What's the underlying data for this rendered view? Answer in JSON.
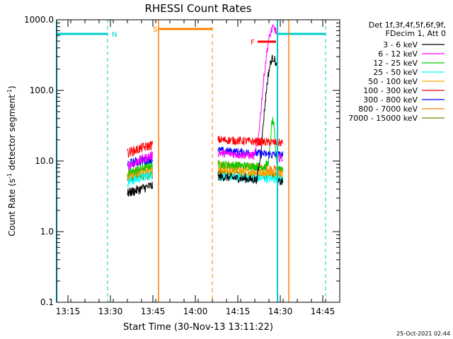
{
  "chart_data": {
    "type": "line",
    "title": "RHESSI Count Rates",
    "xlabel": "Start Time (30-Nov-13 13:11:22)",
    "ylabel_main": "Count Rate (s",
    "ylabel_sup1": "-1",
    "ylabel_mid": " detector segment",
    "ylabel_sup2": "-1",
    "ylabel_end": ")",
    "y_scale": "log",
    "ylim": [
      0.1,
      1000
    ],
    "xlim_min": [
      0,
      71
    ],
    "x_ticks": [
      {
        "t": 4,
        "label": "13:15"
      },
      {
        "t": 19,
        "label": "13:30"
      },
      {
        "t": 34,
        "label": "13:45"
      },
      {
        "t": 49,
        "label": "14:00"
      },
      {
        "t": 64,
        "label": "14:15"
      },
      {
        "t": 79,
        "label": "14:30"
      },
      {
        "t": 94,
        "label": "14:45"
      }
    ],
    "y_ticks": [
      {
        "v": 0.1,
        "label": "0.1"
      },
      {
        "v": 1,
        "label": "1.0"
      },
      {
        "v": 10,
        "label": "10.0"
      },
      {
        "v": 100,
        "label": "100.0"
      },
      {
        "v": 1000,
        "label": "1000.0"
      }
    ],
    "legend_header": [
      "Det 1f,3f,4f,5f,6f,9f,",
      "FDecim 1, Att 0"
    ],
    "series": [
      {
        "name": "3 - 6 keV",
        "color": "#000000"
      },
      {
        "name": "6 - 12 keV",
        "color": "#ff00ff"
      },
      {
        "name": "12 - 25 keV",
        "color": "#00cc00"
      },
      {
        "name": "25 - 50 keV",
        "color": "#00ffff"
      },
      {
        "name": "50 - 100 keV",
        "color": "#ffa500"
      },
      {
        "name": "100 - 300 keV",
        "color": "#ff0000"
      },
      {
        "name": "300 - 800 keV",
        "color": "#0000ff"
      },
      {
        "name": "800 - 7000 keV",
        "color": "#ff7f00"
      },
      {
        "name": "7000 - 15000 keV",
        "color": "#808000"
      }
    ],
    "annotations": [
      {
        "label": "N",
        "color": "#00cccc"
      },
      {
        "label": "S",
        "color": "#ff7f00"
      },
      {
        "label": "F",
        "color": "#ff0000"
      }
    ],
    "timestamp": "25-Oct-2021 02:44"
  }
}
